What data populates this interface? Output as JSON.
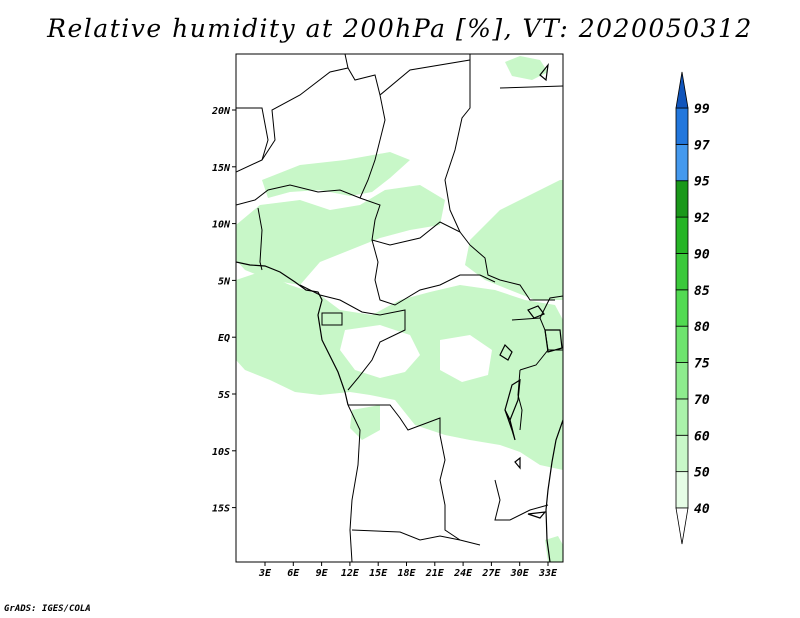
{
  "title": "Relative humidity at 200hPa [%], VT: 2020050312",
  "credit": "GrADS: IGES/COLA",
  "map": {
    "variable": "Relative humidity",
    "level": "200hPa",
    "units": "%",
    "valid_time": "2020050312",
    "lat_labels": [
      "20N",
      "15N",
      "10N",
      "5N",
      "EQ",
      "5S",
      "10S",
      "15S"
    ],
    "lon_labels": [
      "3E",
      "6E",
      "9E",
      "12E",
      "15E",
      "18E",
      "21E",
      "24E",
      "27E",
      "30E",
      "33E"
    ]
  },
  "colorbar": {
    "levels": [
      "40",
      "50",
      "60",
      "70",
      "75",
      "80",
      "85",
      "90",
      "92",
      "95",
      "97",
      "99"
    ],
    "colors": [
      "#ffffff",
      "#e6fde6",
      "#c8f7c8",
      "#aaf2aa",
      "#8eec8e",
      "#6ee46e",
      "#52da52",
      "#3bc93b",
      "#26b526",
      "#1a981a",
      "#4499ee",
      "#2277dd",
      "#1155bb"
    ]
  }
}
